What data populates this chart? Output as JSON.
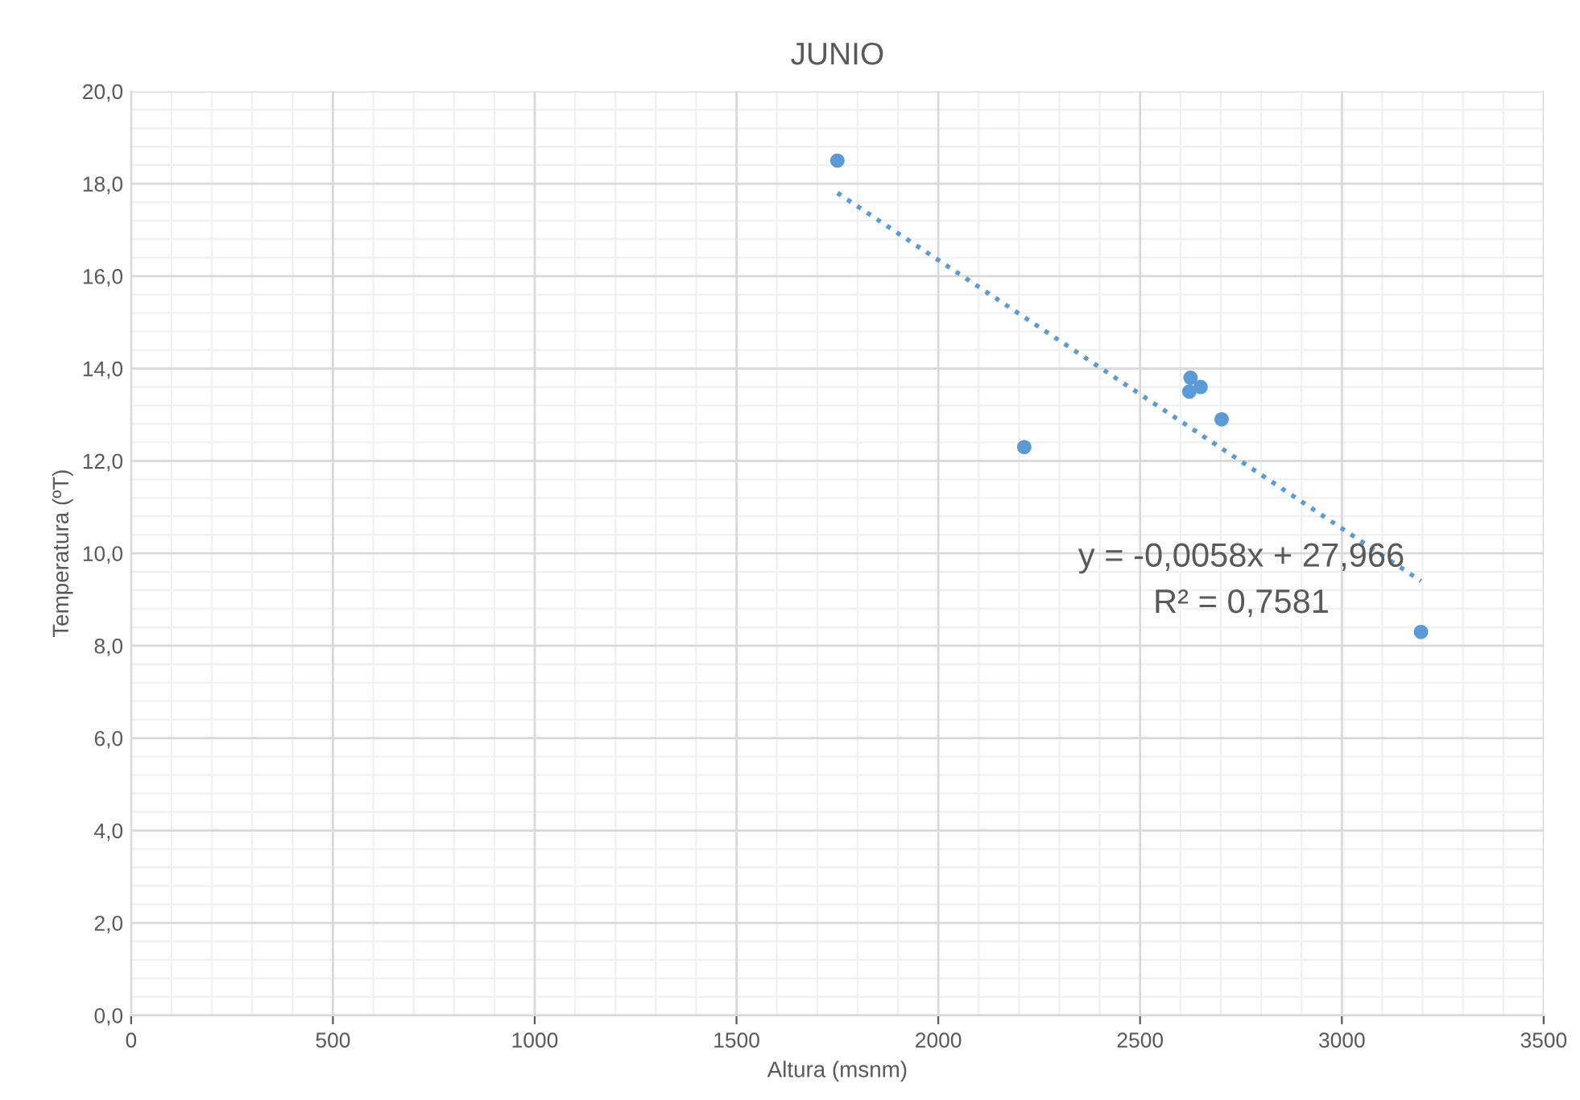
{
  "chart_data": {
    "type": "scatter",
    "title": "JUNIO",
    "xlabel": "Altura (msnm)",
    "ylabel": "Temperatura (ºT)",
    "series": [
      {
        "color": "#5b9bd5",
        "marker": "circle",
        "x": [
          1750,
          2213,
          2625,
          2622,
          2650,
          2702,
          3196
        ],
        "values": [
          18.5,
          12.3,
          13.8,
          13.5,
          13.6,
          12.9,
          8.3
        ]
      },
      {
        "type": "line",
        "color": "#5b9bd5",
        "line_style": "dotted",
        "marker": "none",
        "x": [
          1750,
          3196
        ],
        "values": [
          17.8,
          9.4
        ]
      }
    ],
    "xlim": [
      0,
      3500
    ],
    "xticks": [
      0,
      500,
      1000,
      1500,
      2000,
      2500,
      3000,
      3500
    ],
    "ylim": [
      0,
      20
    ],
    "yticks": [
      {
        "value": 0,
        "label": "0,0"
      },
      {
        "value": 2,
        "label": "2,0"
      },
      {
        "value": 4,
        "label": "4,0"
      },
      {
        "value": 6,
        "label": "6,0"
      },
      {
        "value": 8,
        "label": "8,0"
      },
      {
        "value": 10,
        "label": "10,0"
      },
      {
        "value": 12,
        "label": "12,0"
      },
      {
        "value": 14,
        "label": "14,0"
      },
      {
        "value": 16,
        "label": "16,0"
      },
      {
        "value": 18,
        "label": "18,0"
      },
      {
        "value": 20,
        "label": "20,0"
      }
    ],
    "annotations": [
      "y = -0,0058x + 27,966",
      "R² = 0,7581"
    ],
    "grid": true,
    "legend": false
  }
}
